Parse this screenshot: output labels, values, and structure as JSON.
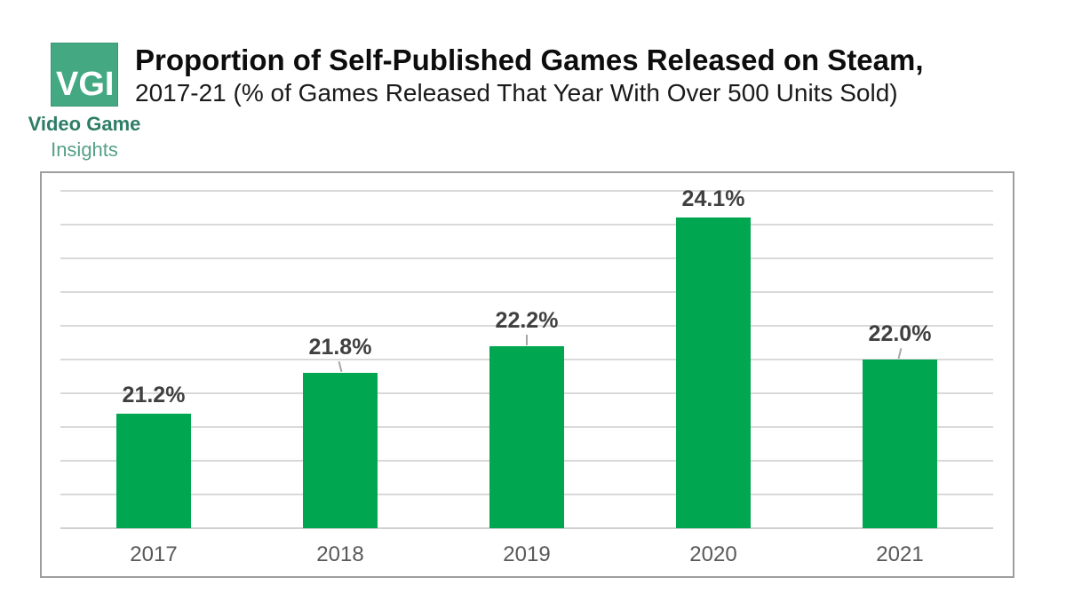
{
  "logo": {
    "abbr": "VGI",
    "line1": "Video Game",
    "line2": "Insights"
  },
  "header": {
    "title": "Proportion of Self-Published Games Released on Steam,",
    "subtitle": "2017-21 (% of Games Released That Year With Over 500 Units Sold)"
  },
  "colors": {
    "bar": "#00A650",
    "gridline": "#D9D9D9",
    "axis_line": "#D0D0D0",
    "frame_border": "#9E9E9E",
    "data_label": "#404040",
    "axis_label": "#595959",
    "logo_bg": "#44A983",
    "logo_text_dark": "#2E7D66",
    "logo_text_light": "#55A086"
  },
  "chart_data": {
    "type": "bar",
    "title": "Proportion of Self-Published Games Released on Steam,",
    "subtitle": "2017-21 (% of Games Released That Year With Over 500 Units Sold)",
    "categories": [
      "2017",
      "2018",
      "2019",
      "2020",
      "2021"
    ],
    "values": [
      21.2,
      21.8,
      22.2,
      24.1,
      22.0
    ],
    "data_labels": [
      "21.2%",
      "21.8%",
      "22.2%",
      "24.1%",
      "22.0%"
    ],
    "unit": "percent",
    "ylim": [
      19.5,
      24.5
    ],
    "gridline_interval": 0.5,
    "grid": true,
    "legend": false,
    "y_axis_tick_labels_visible": false,
    "label_leader_lines": [
      false,
      true,
      true,
      false,
      true
    ],
    "leader_angles_deg": [
      0,
      -14,
      0,
      0,
      14
    ]
  }
}
